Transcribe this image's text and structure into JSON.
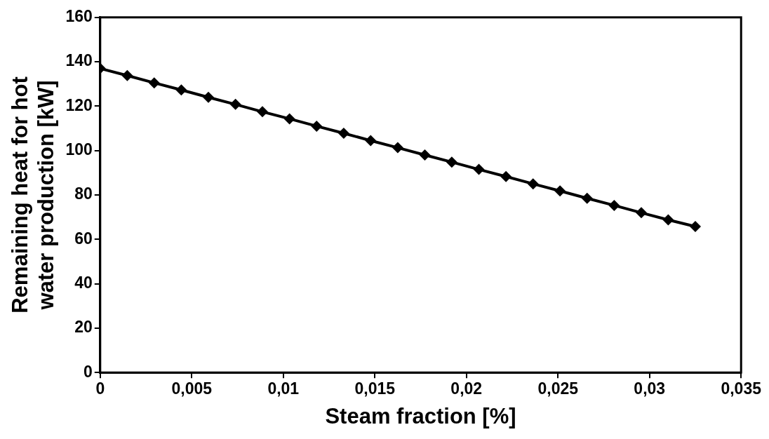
{
  "chart_data": {
    "type": "line",
    "xlabel": "Steam fraction [%]",
    "ylabel": "Remaining heat for hot water production [kW]",
    "x": [
      0,
      0.00148,
      0.00295,
      0.00443,
      0.00591,
      0.00739,
      0.00886,
      0.01034,
      0.01182,
      0.0133,
      0.01477,
      0.01625,
      0.01773,
      0.0192,
      0.02068,
      0.02216,
      0.02364,
      0.02511,
      0.02659,
      0.02807,
      0.02955,
      0.03102,
      0.0325
    ],
    "series": [
      {
        "color": "#000000",
        "values": [
          137,
          133.8,
          130.5,
          127.3,
          124,
          120.8,
          117.5,
          114.3,
          111,
          107.8,
          104.5,
          101.3,
          98,
          94.8,
          91.5,
          88.3,
          85,
          81.8,
          78.5,
          75.3,
          72,
          68.8,
          65.8
        ]
      }
    ],
    "xlim": [
      0,
      0.035
    ],
    "xticks": [
      0,
      {
        "value": 0.005,
        "label": "0,005"
      },
      {
        "value": 0.01,
        "label": "0,01"
      },
      {
        "value": 0.015,
        "label": "0,015"
      },
      {
        "value": 0.02,
        "label": "0,02"
      },
      {
        "value": 0.025,
        "label": "0,025"
      },
      {
        "value": 0.03,
        "label": "0,03"
      },
      {
        "value": 0.035,
        "label": "0,035"
      }
    ],
    "ylim": [
      0,
      160
    ],
    "yticks": [
      0,
      20,
      40,
      60,
      80,
      100,
      120,
      140,
      160
    ],
    "marker": "diamond",
    "line_style": "solid",
    "grid": false,
    "legend": false
  }
}
